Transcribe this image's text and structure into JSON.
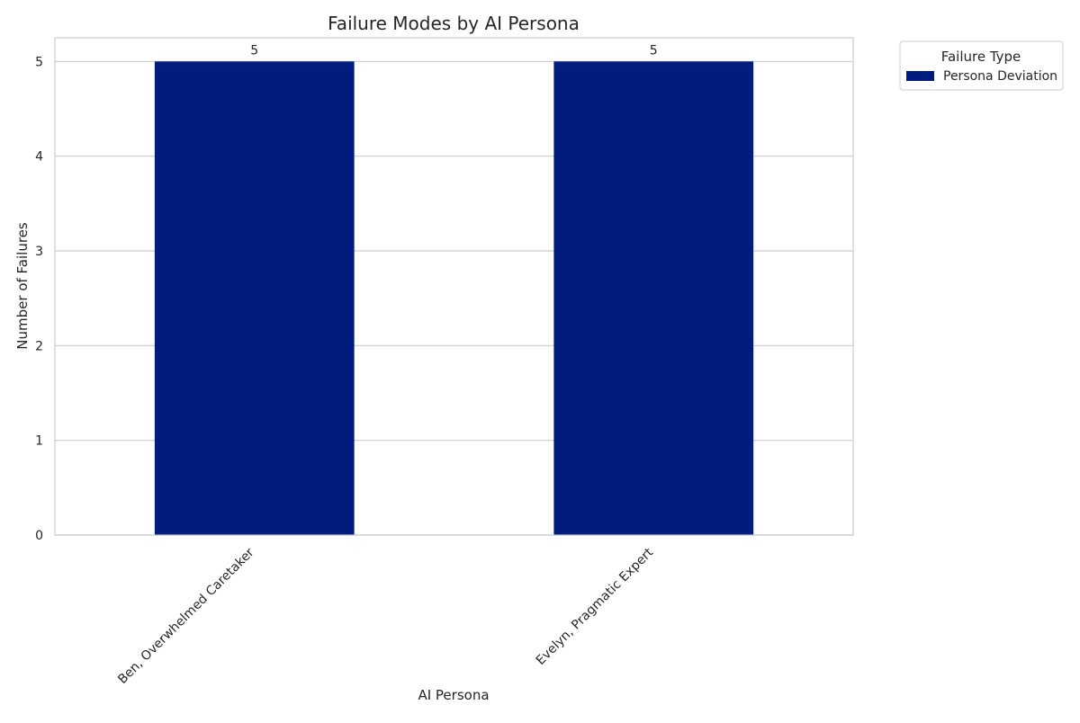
{
  "chart_data": {
    "type": "bar",
    "title": "Failure Modes by AI Persona",
    "xlabel": "AI Persona",
    "ylabel": "Number of Failures",
    "categories": [
      "Ben, Overwhelmed Caretaker",
      "Evelyn, Pragmatic Expert"
    ],
    "series": [
      {
        "name": "Persona Deviation",
        "values": [
          5,
          5
        ],
        "color": "#001c7f"
      }
    ],
    "data_labels": [
      "5",
      "5"
    ],
    "ylim": [
      0,
      5.25
    ],
    "yticks": [
      0,
      1,
      2,
      3,
      4,
      5
    ],
    "grid": true,
    "legend": {
      "title": "Failure Type",
      "placement": "outside-top-right"
    }
  }
}
